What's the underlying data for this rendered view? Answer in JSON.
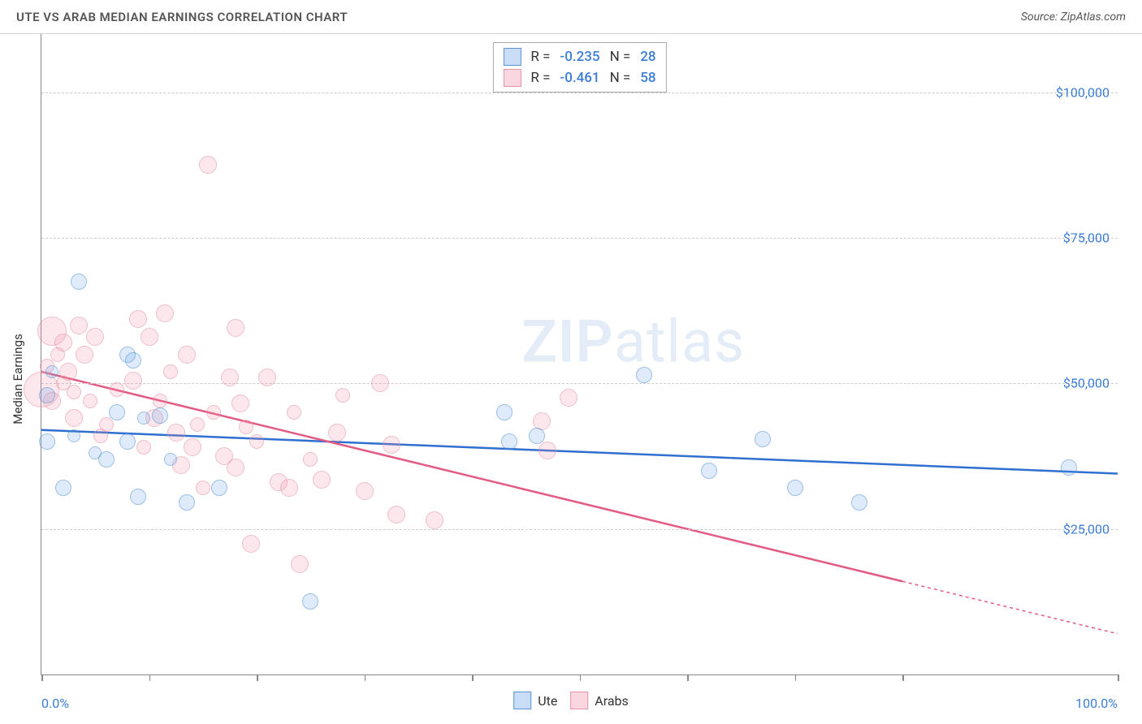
{
  "header": {
    "title": "UTE VS ARAB MEDIAN EARNINGS CORRELATION CHART",
    "source": "Source: ZipAtlas.com"
  },
  "chart": {
    "type": "scatter",
    "yaxis_title": "Median Earnings",
    "xlim": [
      0,
      100
    ],
    "ylim": [
      0,
      110000
    ],
    "xtick_positions": [
      0,
      10,
      20,
      30,
      40,
      50,
      60,
      70,
      80,
      100
    ],
    "xtick_labels": {
      "0": "0.0%",
      "100": "100.0%"
    },
    "ygrid": [
      {
        "y": 25000,
        "label": "$25,000"
      },
      {
        "y": 50000,
        "label": "$50,000"
      },
      {
        "y": 75000,
        "label": "$75,000"
      },
      {
        "y": 100000,
        "label": "$100,000"
      }
    ],
    "background_color": "#ffffff",
    "grid_color": "#cccccc",
    "axis_color": "#888888",
    "label_color": "#3b7dd8",
    "watermark": {
      "pre": "ZIP",
      "post": "atlas"
    }
  },
  "stats": {
    "series_a": {
      "r_label": "R =",
      "r_val": "-0.235",
      "n_label": "N =",
      "n_val": "28"
    },
    "series_b": {
      "r_label": "R =",
      "r_val": "-0.461",
      "n_label": "N =",
      "n_val": "58"
    }
  },
  "legend": {
    "a_label": "Ute",
    "b_label": "Arabs"
  },
  "series": {
    "a": {
      "name": "Ute",
      "color_fill": "rgba(100,160,230,0.35)",
      "color_stroke": "#5a95d6",
      "trend_color": "#2e6fd0",
      "trend_width": 2.5,
      "trend": {
        "x1": 0,
        "y1": 42000,
        "x2": 100,
        "y2": 34500,
        "solid_to_x": 100
      },
      "points": [
        {
          "x": 3.5,
          "y": 67500,
          "r": 10
        },
        {
          "x": 0.5,
          "y": 48000,
          "r": 10
        },
        {
          "x": 0.5,
          "y": 40000,
          "r": 10
        },
        {
          "x": 2.0,
          "y": 32000,
          "r": 10
        },
        {
          "x": 8.0,
          "y": 55000,
          "r": 10
        },
        {
          "x": 8.5,
          "y": 54000,
          "r": 10
        },
        {
          "x": 7.0,
          "y": 45000,
          "r": 10
        },
        {
          "x": 8.0,
          "y": 40000,
          "r": 10
        },
        {
          "x": 6.0,
          "y": 37000,
          "r": 10
        },
        {
          "x": 9.0,
          "y": 30500,
          "r": 10
        },
        {
          "x": 11.0,
          "y": 44500,
          "r": 10
        },
        {
          "x": 13.5,
          "y": 29500,
          "r": 10
        },
        {
          "x": 16.5,
          "y": 32000,
          "r": 10
        },
        {
          "x": 25.0,
          "y": 12500,
          "r": 10
        },
        {
          "x": 43.0,
          "y": 45000,
          "r": 10
        },
        {
          "x": 46.0,
          "y": 41000,
          "r": 10
        },
        {
          "x": 43.5,
          "y": 40000,
          "r": 10
        },
        {
          "x": 56.0,
          "y": 51500,
          "r": 10
        },
        {
          "x": 62.0,
          "y": 35000,
          "r": 10
        },
        {
          "x": 67.0,
          "y": 40500,
          "r": 10
        },
        {
          "x": 70.0,
          "y": 32000,
          "r": 10
        },
        {
          "x": 76.0,
          "y": 29500,
          "r": 10
        },
        {
          "x": 95.5,
          "y": 35500,
          "r": 10
        },
        {
          "x": 1.0,
          "y": 52000,
          "r": 8
        },
        {
          "x": 3.0,
          "y": 41000,
          "r": 8
        },
        {
          "x": 5.0,
          "y": 38000,
          "r": 8
        },
        {
          "x": 9.5,
          "y": 44000,
          "r": 8
        },
        {
          "x": 12.0,
          "y": 37000,
          "r": 8
        }
      ]
    },
    "b": {
      "name": "Arabs",
      "color_fill": "rgba(240,140,165,0.35)",
      "color_stroke": "#e694a8",
      "trend_color": "#e35b85",
      "trend_width": 2.5,
      "trend": {
        "x1": 0,
        "y1": 52000,
        "x2": 100,
        "y2": 7000,
        "solid_to_x": 80
      },
      "points": [
        {
          "x": 15.5,
          "y": 87500,
          "r": 11
        },
        {
          "x": 1.0,
          "y": 59000,
          "r": 18
        },
        {
          "x": 2.0,
          "y": 57000,
          "r": 11
        },
        {
          "x": 3.5,
          "y": 60000,
          "r": 11
        },
        {
          "x": 0.0,
          "y": 49000,
          "r": 22
        },
        {
          "x": 4.0,
          "y": 55000,
          "r": 11
        },
        {
          "x": 5.0,
          "y": 58000,
          "r": 11
        },
        {
          "x": 2.5,
          "y": 52000,
          "r": 11
        },
        {
          "x": 1.0,
          "y": 47000,
          "r": 11
        },
        {
          "x": 3.0,
          "y": 44000,
          "r": 11
        },
        {
          "x": 9.0,
          "y": 61000,
          "r": 11
        },
        {
          "x": 10.0,
          "y": 58000,
          "r": 11
        },
        {
          "x": 11.5,
          "y": 62000,
          "r": 11
        },
        {
          "x": 8.5,
          "y": 50500,
          "r": 11
        },
        {
          "x": 10.5,
          "y": 44000,
          "r": 11
        },
        {
          "x": 12.5,
          "y": 41500,
          "r": 11
        },
        {
          "x": 13.5,
          "y": 55000,
          "r": 11
        },
        {
          "x": 14.0,
          "y": 39000,
          "r": 11
        },
        {
          "x": 13.0,
          "y": 36000,
          "r": 11
        },
        {
          "x": 18.0,
          "y": 59500,
          "r": 11
        },
        {
          "x": 17.5,
          "y": 51000,
          "r": 11
        },
        {
          "x": 18.5,
          "y": 46500,
          "r": 11
        },
        {
          "x": 17.0,
          "y": 37500,
          "r": 11
        },
        {
          "x": 18.0,
          "y": 35500,
          "r": 11
        },
        {
          "x": 19.5,
          "y": 22500,
          "r": 11
        },
        {
          "x": 21.0,
          "y": 51000,
          "r": 11
        },
        {
          "x": 22.0,
          "y": 33000,
          "r": 11
        },
        {
          "x": 23.0,
          "y": 32000,
          "r": 11
        },
        {
          "x": 24.0,
          "y": 19000,
          "r": 11
        },
        {
          "x": 26.0,
          "y": 33500,
          "r": 11
        },
        {
          "x": 27.5,
          "y": 41500,
          "r": 11
        },
        {
          "x": 30.0,
          "y": 31500,
          "r": 11
        },
        {
          "x": 31.5,
          "y": 50000,
          "r": 11
        },
        {
          "x": 32.5,
          "y": 39500,
          "r": 11
        },
        {
          "x": 33.0,
          "y": 27500,
          "r": 11
        },
        {
          "x": 36.5,
          "y": 26500,
          "r": 11
        },
        {
          "x": 46.5,
          "y": 43500,
          "r": 11
        },
        {
          "x": 47.0,
          "y": 38500,
          "r": 11
        },
        {
          "x": 49.0,
          "y": 47500,
          "r": 11
        },
        {
          "x": 1.5,
          "y": 55000,
          "r": 9
        },
        {
          "x": 2.0,
          "y": 50000,
          "r": 9
        },
        {
          "x": 4.5,
          "y": 47000,
          "r": 9
        },
        {
          "x": 6.0,
          "y": 43000,
          "r": 9
        },
        {
          "x": 7.0,
          "y": 49000,
          "r": 9
        },
        {
          "x": 11.0,
          "y": 47000,
          "r": 9
        },
        {
          "x": 14.5,
          "y": 43000,
          "r": 9
        },
        {
          "x": 15.0,
          "y": 32000,
          "r": 9
        },
        {
          "x": 20.0,
          "y": 40000,
          "r": 9
        },
        {
          "x": 25.0,
          "y": 37000,
          "r": 9
        },
        {
          "x": 28.0,
          "y": 48000,
          "r": 9
        },
        {
          "x": 9.5,
          "y": 39000,
          "r": 9
        },
        {
          "x": 0.5,
          "y": 53000,
          "r": 9
        },
        {
          "x": 3.0,
          "y": 48500,
          "r": 9
        },
        {
          "x": 5.5,
          "y": 41000,
          "r": 9
        },
        {
          "x": 12.0,
          "y": 52000,
          "r": 9
        },
        {
          "x": 16.0,
          "y": 45000,
          "r": 9
        },
        {
          "x": 19.0,
          "y": 42500,
          "r": 9
        },
        {
          "x": 23.5,
          "y": 45000,
          "r": 9
        }
      ]
    }
  }
}
